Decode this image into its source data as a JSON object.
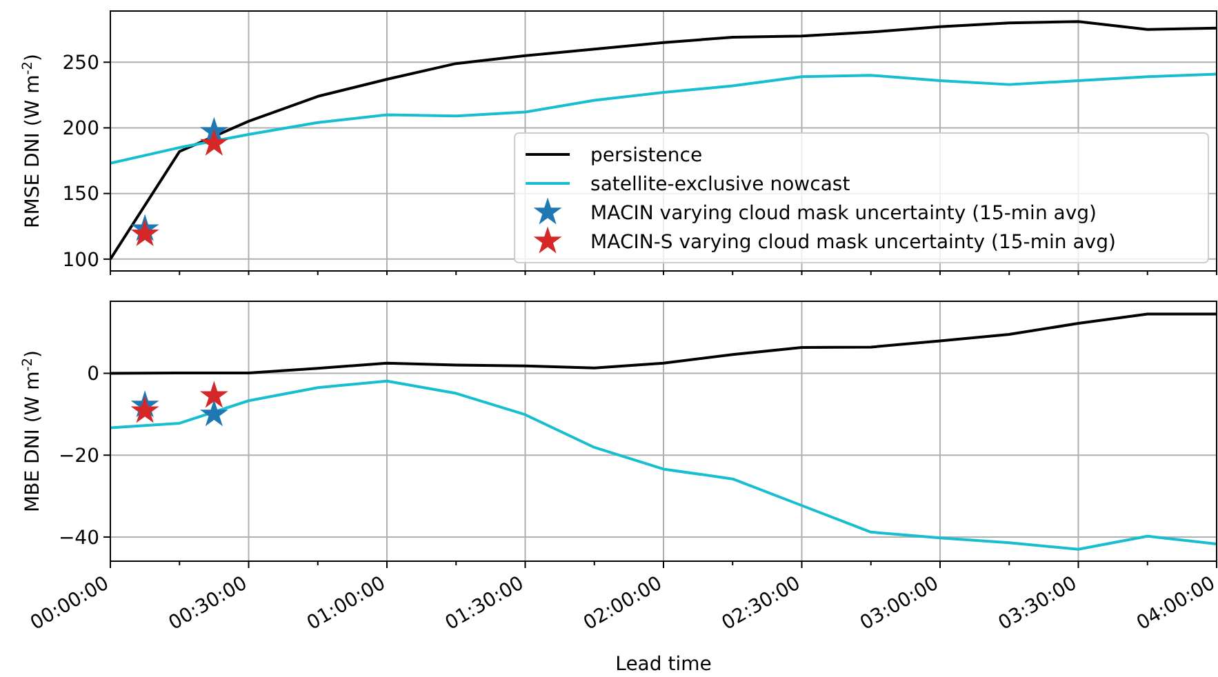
{
  "chart_data": [
    {
      "type": "line",
      "ylabel": "RMSE DNI (W m$^{-2}$)",
      "xlim": [
        0,
        4
      ],
      "ylim": [
        91,
        289
      ],
      "xticks": [
        {
          "value": 0,
          "label": null
        },
        {
          "value": 0.25,
          "label": null
        },
        {
          "value": 0.5,
          "label": null
        },
        {
          "value": 0.75,
          "label": null
        },
        {
          "value": 1,
          "label": null
        },
        {
          "value": 1.25,
          "label": null
        },
        {
          "value": 1.5,
          "label": null
        },
        {
          "value": 1.75,
          "label": null
        },
        {
          "value": 2,
          "label": null
        },
        {
          "value": 2.25,
          "label": null
        },
        {
          "value": 2.5,
          "label": null
        },
        {
          "value": 2.75,
          "label": null
        },
        {
          "value": 3,
          "label": null
        },
        {
          "value": 3.25,
          "label": null
        },
        {
          "value": 3.5,
          "label": null
        },
        {
          "value": 3.75,
          "label": null
        },
        {
          "value": 4,
          "label": null
        }
      ],
      "yticks": [
        100,
        150,
        200,
        250
      ],
      "grid": true,
      "legend": "bottom right",
      "tick_labels": "y",
      "series": [
        {
          "name": "persistence",
          "type": "line",
          "color": "#000000",
          "marker": "none",
          "x": [
            0,
            0.25,
            0.5,
            0.75,
            1,
            1.25,
            1.5,
            1.75,
            2,
            2.25,
            2.5,
            2.75,
            3,
            3.25,
            3.5,
            3.75,
            4
          ],
          "values": [
            100,
            182,
            205,
            224,
            237,
            249,
            255,
            260,
            265,
            269,
            270,
            273,
            277,
            280,
            281,
            275,
            276
          ]
        },
        {
          "name": "satellite-exclusive nowcast",
          "type": "line",
          "color": "#17becf",
          "marker": "none",
          "x": [
            0,
            0.25,
            0.5,
            0.75,
            1,
            1.25,
            1.5,
            1.75,
            2,
            2.25,
            2.5,
            2.75,
            3,
            3.25,
            3.5,
            3.75,
            4
          ],
          "values": [
            173,
            185,
            195,
            204,
            210,
            209,
            212,
            221,
            227,
            232,
            239,
            240,
            236,
            233,
            236,
            239,
            241
          ]
        },
        {
          "name": "MACIN varying cloud mask uncertainty (15-min avg)",
          "type": "scatter",
          "color": "#1f77b4",
          "marker": "star",
          "x": [
            0.125,
            0.375
          ],
          "values": [
            123,
            197
          ]
        },
        {
          "name": "MACIN-S varying cloud mask uncertainty (15-min avg)",
          "type": "scatter",
          "color": "#d62728",
          "marker": "star",
          "x": [
            0.125,
            0.375
          ],
          "values": [
            119,
            188
          ]
        }
      ]
    },
    {
      "type": "line",
      "ylabel": "MBE DNI (W m$^{-2}$)",
      "xlabel": "Lead time",
      "xlim": [
        0,
        4
      ],
      "ylim": [
        -45.9,
        17.6
      ],
      "xticks": [
        {
          "value": 0,
          "label": "00:00:00"
        },
        {
          "value": 0.25,
          "label": null
        },
        {
          "value": 0.5,
          "label": "00:30:00"
        },
        {
          "value": 0.75,
          "label": null
        },
        {
          "value": 1,
          "label": "01:00:00"
        },
        {
          "value": 1.25,
          "label": null
        },
        {
          "value": 1.5,
          "label": "01:30:00"
        },
        {
          "value": 1.75,
          "label": null
        },
        {
          "value": 2,
          "label": "02:00:00"
        },
        {
          "value": 2.25,
          "label": null
        },
        {
          "value": 2.5,
          "label": "02:30:00"
        },
        {
          "value": 2.75,
          "label": null
        },
        {
          "value": 3,
          "label": "03:00:00"
        },
        {
          "value": 3.25,
          "label": null
        },
        {
          "value": 3.5,
          "label": "03:30:00"
        },
        {
          "value": 3.75,
          "label": null
        },
        {
          "value": 4,
          "label": "04:00:00"
        }
      ],
      "yticks": [
        {
          "value": -40,
          "label": "−40"
        },
        {
          "value": -20,
          "label": "−20"
        },
        0
      ],
      "grid": true,
      "series": [
        {
          "type": "line",
          "color": "#000000",
          "marker": "none",
          "x": [
            0,
            0.25,
            0.5,
            0.75,
            1,
            1.25,
            1.5,
            1.75,
            2,
            2.25,
            2.5,
            2.75,
            3,
            3.25,
            3.5,
            3.75,
            4
          ],
          "values": [
            0,
            0.1,
            0.1,
            1.2,
            2.5,
            2,
            1.8,
            1.3,
            2.5,
            4.6,
            6.3,
            6.4,
            7.9,
            9.5,
            12.2,
            14.5,
            14.5
          ]
        },
        {
          "type": "line",
          "color": "#17becf",
          "marker": "none",
          "x": [
            0,
            0.25,
            0.5,
            0.75,
            1,
            1.25,
            1.5,
            1.75,
            2,
            2.25,
            2.5,
            2.75,
            3,
            3.25,
            3.5,
            3.75,
            4
          ],
          "values": [
            -13.3,
            -12.2,
            -6.7,
            -3.5,
            -1.9,
            -4.9,
            -10.1,
            -18.1,
            -23.4,
            -25.8,
            -32.3,
            -38.8,
            -40.2,
            -41.4,
            -43,
            -39.8,
            -41.7
          ]
        },
        {
          "type": "scatter",
          "color": "#1f77b4",
          "marker": "star",
          "x": [
            0.125,
            0.375
          ],
          "values": [
            -7.8,
            -10
          ]
        },
        {
          "type": "scatter",
          "color": "#d62728",
          "marker": "star",
          "x": [
            0.125,
            0.375
          ],
          "values": [
            -9.2,
            -5.5
          ]
        }
      ]
    }
  ]
}
